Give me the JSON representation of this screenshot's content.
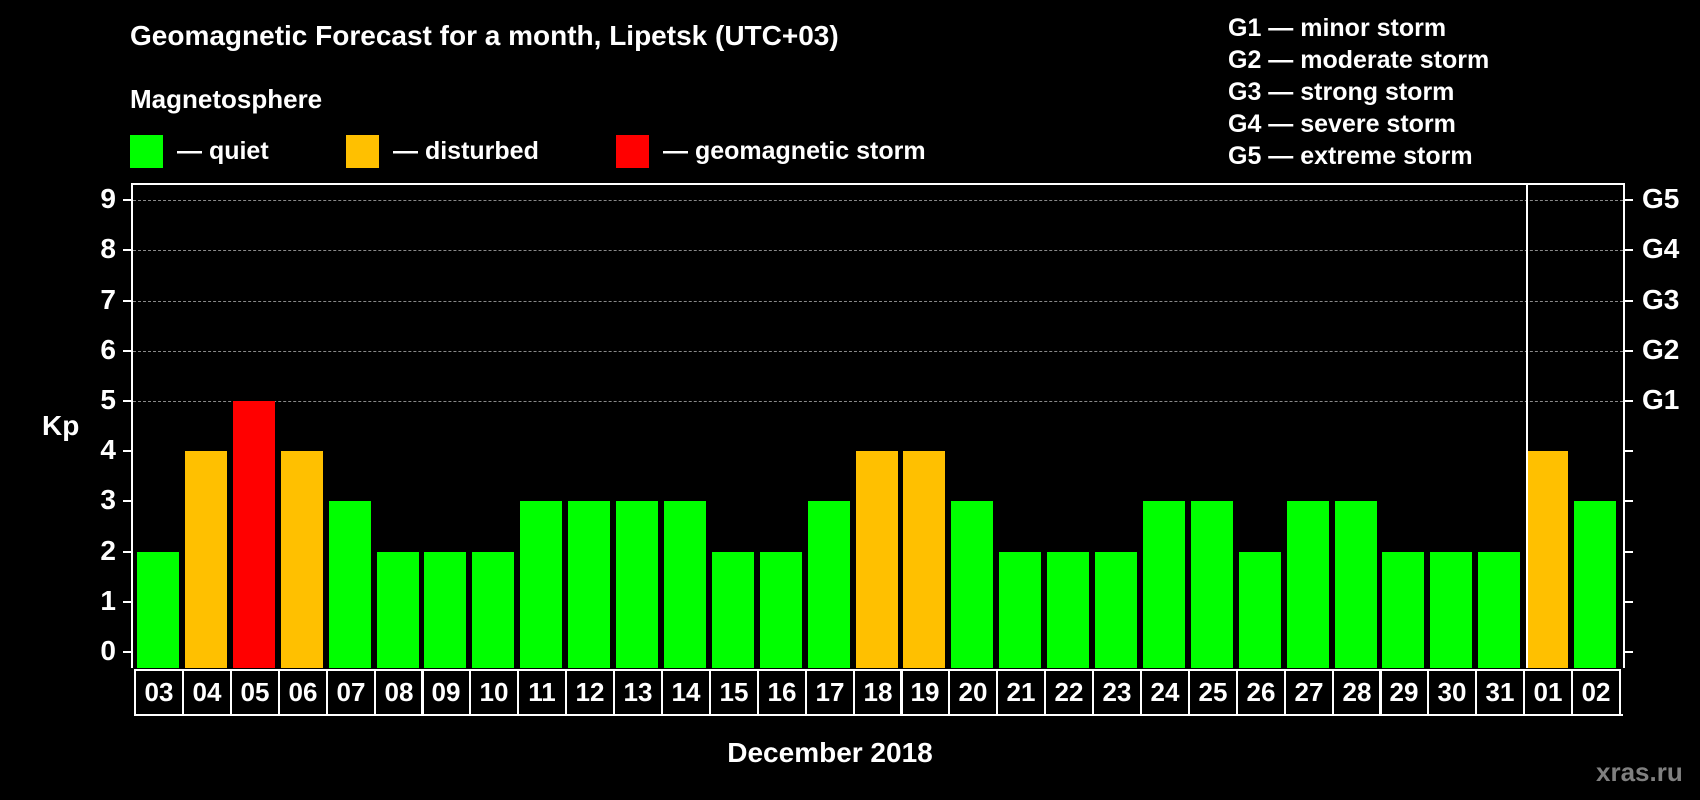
{
  "title": "Geomagnetic Forecast for a month, Lipetsk (UTC+03)",
  "legend": {
    "heading": "Magnetosphere",
    "items": [
      {
        "label": "— quiet",
        "color": "#00ff00"
      },
      {
        "label": "— disturbed",
        "color": "#ffc000"
      },
      {
        "label": "— geomagnetic storm",
        "color": "#ff0000"
      }
    ]
  },
  "storm_scale": [
    "G1 — minor storm",
    "G2 — moderate storm",
    "G3 — strong storm",
    "G4 — severe storm",
    "G5 — extreme storm"
  ],
  "y_axis": {
    "label": "Kp",
    "ticks": [
      "0",
      "1",
      "2",
      "3",
      "4",
      "5",
      "6",
      "7",
      "8",
      "9"
    ]
  },
  "right_axis": {
    "ticks": [
      {
        "value": 5,
        "label": "G1"
      },
      {
        "value": 6,
        "label": "G2"
      },
      {
        "value": 7,
        "label": "G3"
      },
      {
        "value": 8,
        "label": "G4"
      },
      {
        "value": 9,
        "label": "G5"
      }
    ]
  },
  "x_axis": {
    "label": "December 2018"
  },
  "watermark": "xras.ru",
  "colors": {
    "quiet": "#00ff00",
    "disturbed": "#ffc000",
    "storm": "#ff0000",
    "background": "#000000",
    "grid": "#8a8a8a"
  },
  "chart_data": {
    "type": "bar",
    "title": "Geomagnetic Forecast for a month, Lipetsk (UTC+03)",
    "xlabel": "December 2018",
    "ylabel": "Kp",
    "ylim": [
      0,
      9
    ],
    "grid": "dashed horizontal at Kp 5–9",
    "categories": [
      "03",
      "04",
      "05",
      "06",
      "07",
      "08",
      "09",
      "10",
      "11",
      "12",
      "13",
      "14",
      "15",
      "16",
      "17",
      "18",
      "19",
      "20",
      "21",
      "22",
      "23",
      "24",
      "25",
      "26",
      "27",
      "28",
      "29",
      "30",
      "31",
      "01",
      "02"
    ],
    "values": [
      2,
      4,
      5,
      4,
      3,
      2,
      2,
      2,
      3,
      3,
      3,
      3,
      2,
      2,
      3,
      4,
      4,
      3,
      2,
      2,
      2,
      3,
      3,
      2,
      3,
      3,
      2,
      2,
      2,
      4,
      3
    ],
    "status": [
      "quiet",
      "disturbed",
      "storm",
      "disturbed",
      "quiet",
      "quiet",
      "quiet",
      "quiet",
      "quiet",
      "quiet",
      "quiet",
      "quiet",
      "quiet",
      "quiet",
      "quiet",
      "disturbed",
      "disturbed",
      "quiet",
      "quiet",
      "quiet",
      "quiet",
      "quiet",
      "quiet",
      "quiet",
      "quiet",
      "quiet",
      "quiet",
      "quiet",
      "quiet",
      "disturbed",
      "quiet"
    ],
    "legend": [
      "quiet",
      "disturbed",
      "geomagnetic storm"
    ],
    "secondary_y_ticks": {
      "5": "G1",
      "6": "G2",
      "7": "G3",
      "8": "G4",
      "9": "G5"
    },
    "month_divider_after": "31"
  }
}
